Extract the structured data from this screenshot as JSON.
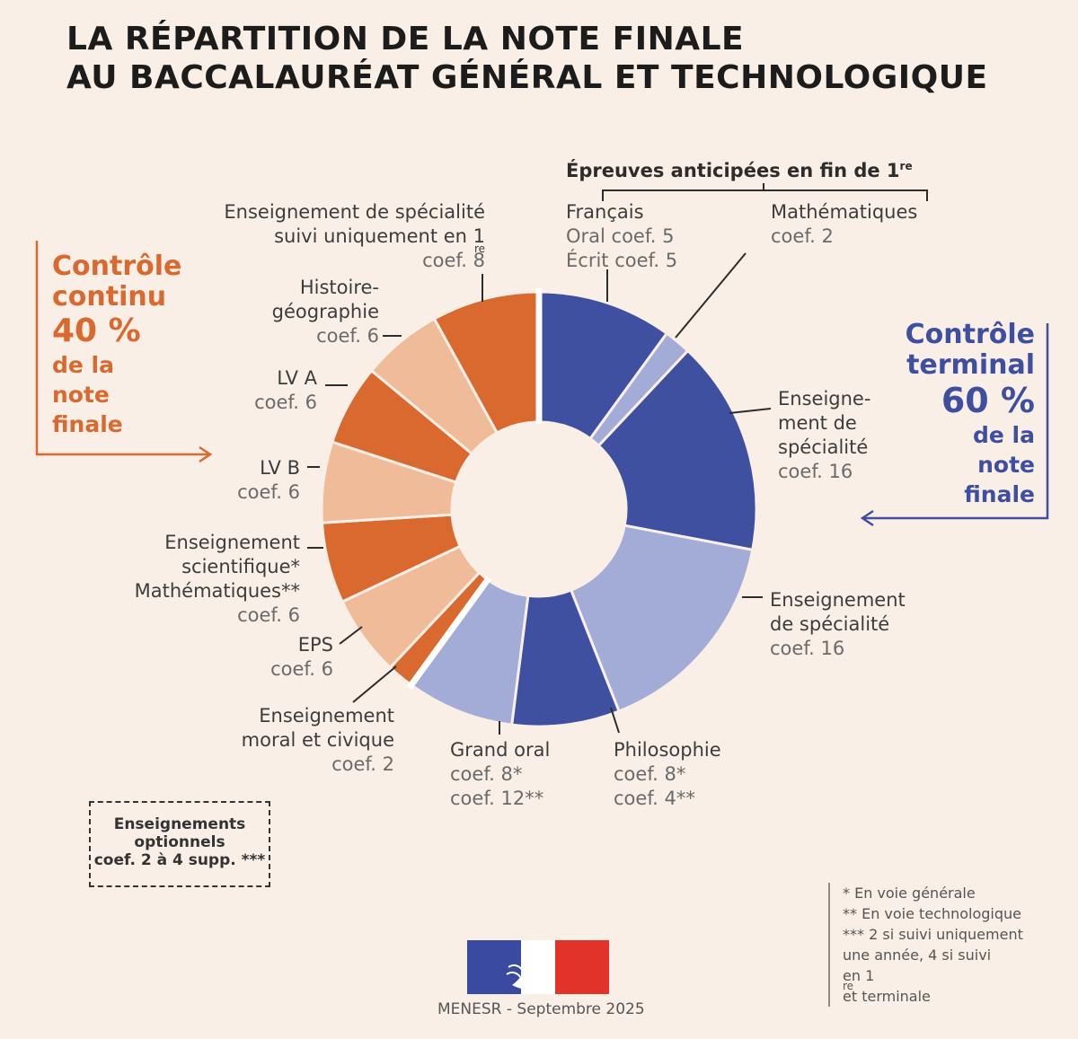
{
  "title": {
    "line1": "LA RÉPARTITION DE LA NOTE FINALE",
    "line2": "AU BACCALAURÉAT GÉNÉRAL ET TECHNOLOGIQUE"
  },
  "anticipated_header": "Épreuves anticipées en fin de 1",
  "sup_re": "re",
  "controle_continu": {
    "line1": "Contrôle",
    "line2": "continu",
    "pct": "40 %",
    "line3": "de la",
    "line4": "note",
    "line5": "finale"
  },
  "controle_terminal": {
    "line1": "Contrôle",
    "line2": "terminal",
    "pct": "60 %",
    "line3": "de la",
    "line4": "note",
    "line5": "finale"
  },
  "labels": {
    "francais": {
      "name": "Français",
      "c1": "Oral coef. 5",
      "c2": "Écrit coef. 5"
    },
    "maths_anticip": {
      "name": "Mathématiques",
      "c1": "coef. 2"
    },
    "spe_term1": {
      "l1": "Enseigne-",
      "l2": "ment de",
      "l3": "spécialité",
      "c1": "coef. 16"
    },
    "spe_term2": {
      "l1": "Enseignement",
      "l2": "de spécialité",
      "c1": "coef. 16"
    },
    "philo": {
      "name": "Philosophie",
      "c1": "coef. 8*",
      "c2": "coef. 4**"
    },
    "grand_oral": {
      "name": "Grand oral",
      "c1": "coef. 8*",
      "c2": "coef. 12**"
    },
    "emc": {
      "l1": "Enseignement",
      "l2": "moral et civique",
      "c1": "coef. 2"
    },
    "eps": {
      "name": "EPS",
      "c1": "coef. 6"
    },
    "ens_sci": {
      "l1": "Enseignement",
      "l2": "scientifique*",
      "l3": "Mathématiques**",
      "c1": "coef. 6"
    },
    "lvb": {
      "name": "LV B",
      "c1": "coef. 6"
    },
    "lva": {
      "name": "LV A",
      "c1": "coef. 6"
    },
    "hg": {
      "l1": "Histoire-",
      "l2": "géographie",
      "c1": "coef. 6"
    },
    "spe_1re": {
      "l1": "Enseignement de spécialité",
      "l2": "suivi uniquement en 1",
      "c1": "coef. 8"
    }
  },
  "optional": {
    "l1": "Enseignements",
    "l2": "optionnels",
    "l3": "coef. 2 à 4 supp. ***"
  },
  "notes": {
    "n1": "* En voie générale",
    "n2": "** En voie technologique",
    "n3": "*** 2 si suivi uniquement",
    "n4": "une année, 4 si suivi",
    "n5": "en 1",
    "n5b": " et terminale"
  },
  "credit": "MENESR - Septembre 2025",
  "colors": {
    "blue_dark": "#3f50a0",
    "blue_light": "#a3acd6",
    "orange_dark": "#d9692e",
    "orange_light": "#efbb98",
    "accent_orange": "#d9692e",
    "accent_blue": "#3f4fa0"
  },
  "chart_data": {
    "type": "pie",
    "variant": "donut",
    "title": "La répartition de la note finale au baccalauréat général et technologique",
    "unit": "coefficient",
    "groups": [
      {
        "name": "Contrôle terminal",
        "share_percent": 60
      },
      {
        "name": "Contrôle continu",
        "share_percent": 40
      }
    ],
    "slices": [
      {
        "label": "Français (oral + écrit)",
        "value": 10,
        "group": "Contrôle terminal",
        "shade": "dark"
      },
      {
        "label": "Mathématiques (épreuve anticipée)",
        "value": 2,
        "group": "Contrôle terminal",
        "shade": "light"
      },
      {
        "label": "Enseignement de spécialité",
        "value": 16,
        "group": "Contrôle terminal",
        "shade": "dark"
      },
      {
        "label": "Enseignement de spécialité",
        "value": 16,
        "group": "Contrôle terminal",
        "shade": "light"
      },
      {
        "label": "Philosophie",
        "value": 8,
        "group": "Contrôle terminal",
        "shade": "dark"
      },
      {
        "label": "Grand oral",
        "value": 8,
        "group": "Contrôle terminal",
        "shade": "light"
      },
      {
        "label": "Enseignement moral et civique",
        "value": 2,
        "group": "Contrôle continu",
        "shade": "dark"
      },
      {
        "label": "EPS",
        "value": 6,
        "group": "Contrôle continu",
        "shade": "light"
      },
      {
        "label": "Enseignement scientifique / Mathématiques",
        "value": 6,
        "group": "Contrôle continu",
        "shade": "dark"
      },
      {
        "label": "LV B",
        "value": 6,
        "group": "Contrôle continu",
        "shade": "light"
      },
      {
        "label": "LV A",
        "value": 6,
        "group": "Contrôle continu",
        "shade": "dark"
      },
      {
        "label": "Histoire-géographie",
        "value": 6,
        "group": "Contrôle continu",
        "shade": "light"
      },
      {
        "label": "Enseignement de spécialité suivi uniquement en 1re",
        "value": 8,
        "group": "Contrôle continu",
        "shade": "dark"
      }
    ],
    "total": 100
  }
}
